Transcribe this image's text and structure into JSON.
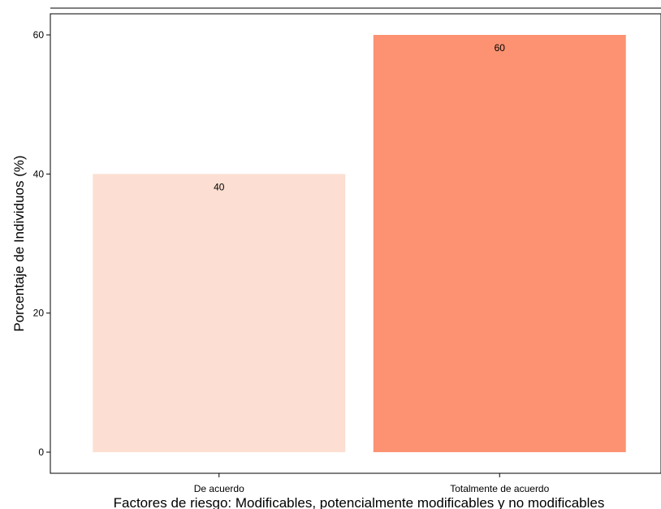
{
  "chart_data": {
    "type": "bar",
    "categories": [
      "De acuerdo",
      "Totalmente de acuerdo"
    ],
    "values": [
      40,
      60
    ],
    "data_labels": [
      "40",
      "60"
    ],
    "xlabel": "Factores de riesgo: Modificables, potencialmente modificables y no modificables",
    "ylabel": "Porcentaje de Individuos (%)",
    "ylim": [
      0,
      63
    ],
    "yticks": [
      0,
      20,
      40,
      60
    ],
    "ytick_labels": [
      "0",
      "20",
      "40",
      "60"
    ],
    "bar_colors": [
      "#fcdfd2",
      "#fc9272"
    ],
    "grid": false,
    "legend": "none"
  }
}
